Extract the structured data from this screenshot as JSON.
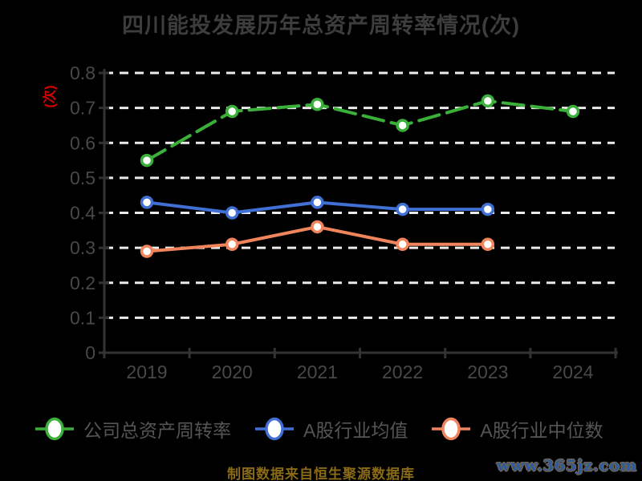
{
  "title": "四川能投发展历年总资产周转率情况(次)",
  "y_axis_unit_label": "(次)",
  "source_note": "制图数据来自恒生聚源数据库",
  "watermark": "www.365jz.com",
  "colors": {
    "background": "#000000",
    "grid": "#ebebeb",
    "axis": "#333333",
    "title_text": "#3d3d3d",
    "tick_text": "#484848",
    "legend_text": "#555555",
    "unit_label": "#d40000",
    "source_text": "#8a6a15",
    "watermark_text": "#2d5b9e",
    "marker_fill": "#ffffff"
  },
  "chart_data": {
    "type": "line",
    "title": "四川能投发展历年总资产周转率情况(次)",
    "xlabel": "",
    "ylabel": "(次)",
    "categories": [
      "2019",
      "2020",
      "2021",
      "2022",
      "2023",
      "2024"
    ],
    "series": [
      {
        "name": "公司总资产周转率",
        "color": "#3aaf3a",
        "line_style": "dashed",
        "values": [
          0.55,
          0.69,
          0.71,
          0.65,
          0.72,
          0.69
        ]
      },
      {
        "name": "A股行业均值",
        "color": "#4070d4",
        "line_style": "solid",
        "values": [
          0.43,
          0.4,
          0.43,
          0.41,
          0.41,
          null
        ]
      },
      {
        "name": "A股行业中位数",
        "color": "#f0845c",
        "line_style": "solid",
        "values": [
          0.29,
          0.31,
          0.36,
          0.31,
          0.31,
          null
        ]
      }
    ],
    "ylim": [
      0,
      0.8
    ],
    "yticks": [
      0,
      0.1,
      0.2,
      0.3,
      0.4,
      0.5,
      0.6,
      0.7,
      0.8
    ],
    "grid": "horizontal-dashed-white",
    "legend_position": "bottom",
    "marker": "circle-white-fill"
  }
}
